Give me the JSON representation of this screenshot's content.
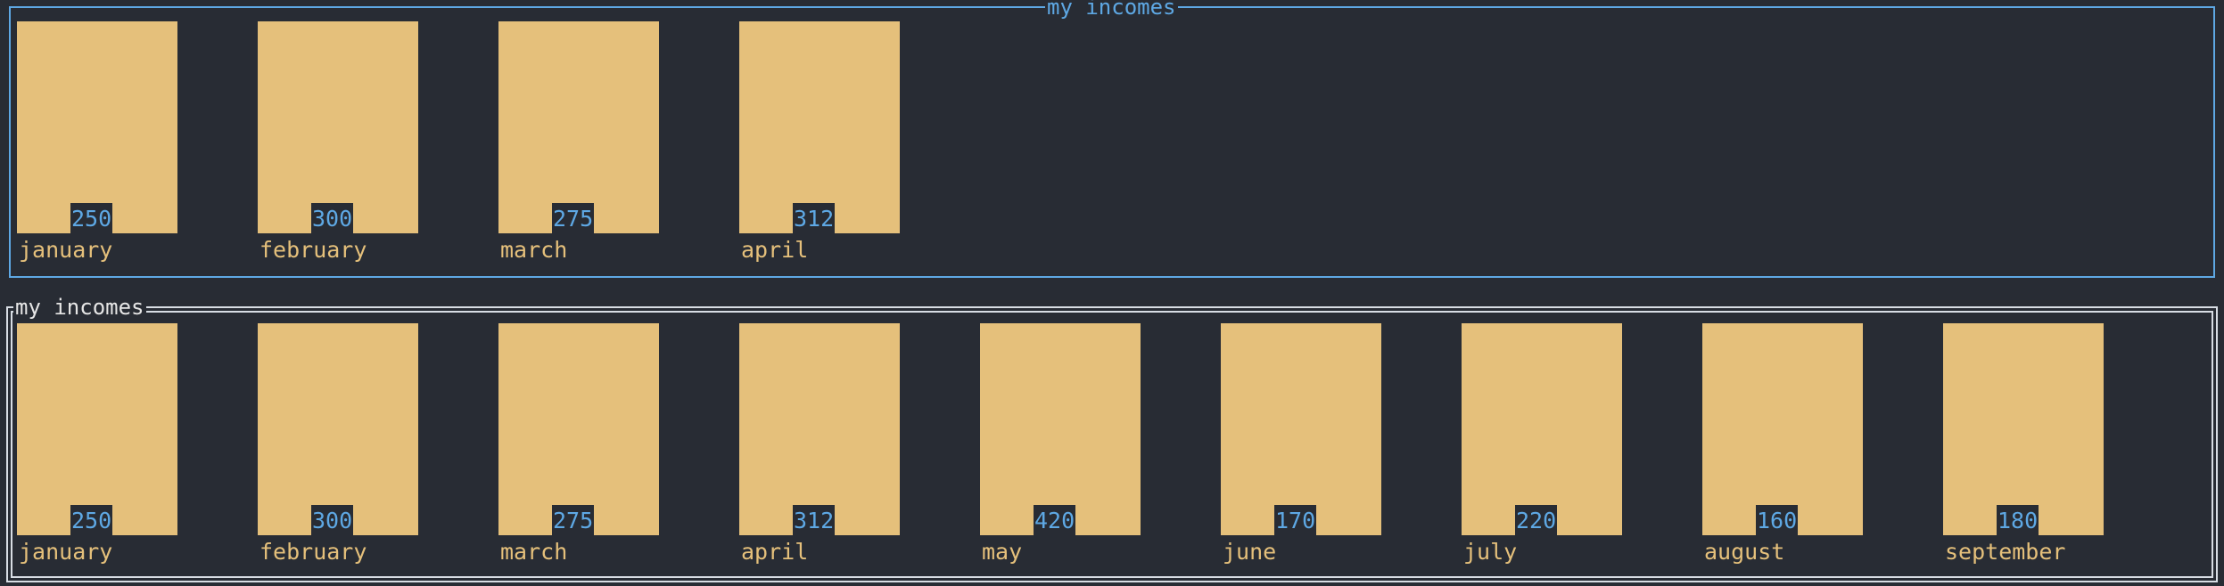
{
  "colors": {
    "background": "#282c34",
    "bar": "#e5c07b",
    "value_text": "#5ea8e4",
    "label_text": "#e5c07b",
    "border_top": "#5ea8e4",
    "border_bottom": "#d8dde4"
  },
  "chart_data": [
    {
      "type": "bar",
      "title": "my incomes",
      "categories": [
        "january",
        "february",
        "march",
        "april"
      ],
      "values": [
        250,
        300,
        275,
        312
      ]
    },
    {
      "type": "bar",
      "title": "my incomes",
      "categories": [
        "january",
        "february",
        "march",
        "april",
        "may",
        "june",
        "july",
        "august",
        "september"
      ],
      "values": [
        250,
        300,
        275,
        312,
        420,
        170,
        220,
        160,
        180
      ]
    }
  ]
}
